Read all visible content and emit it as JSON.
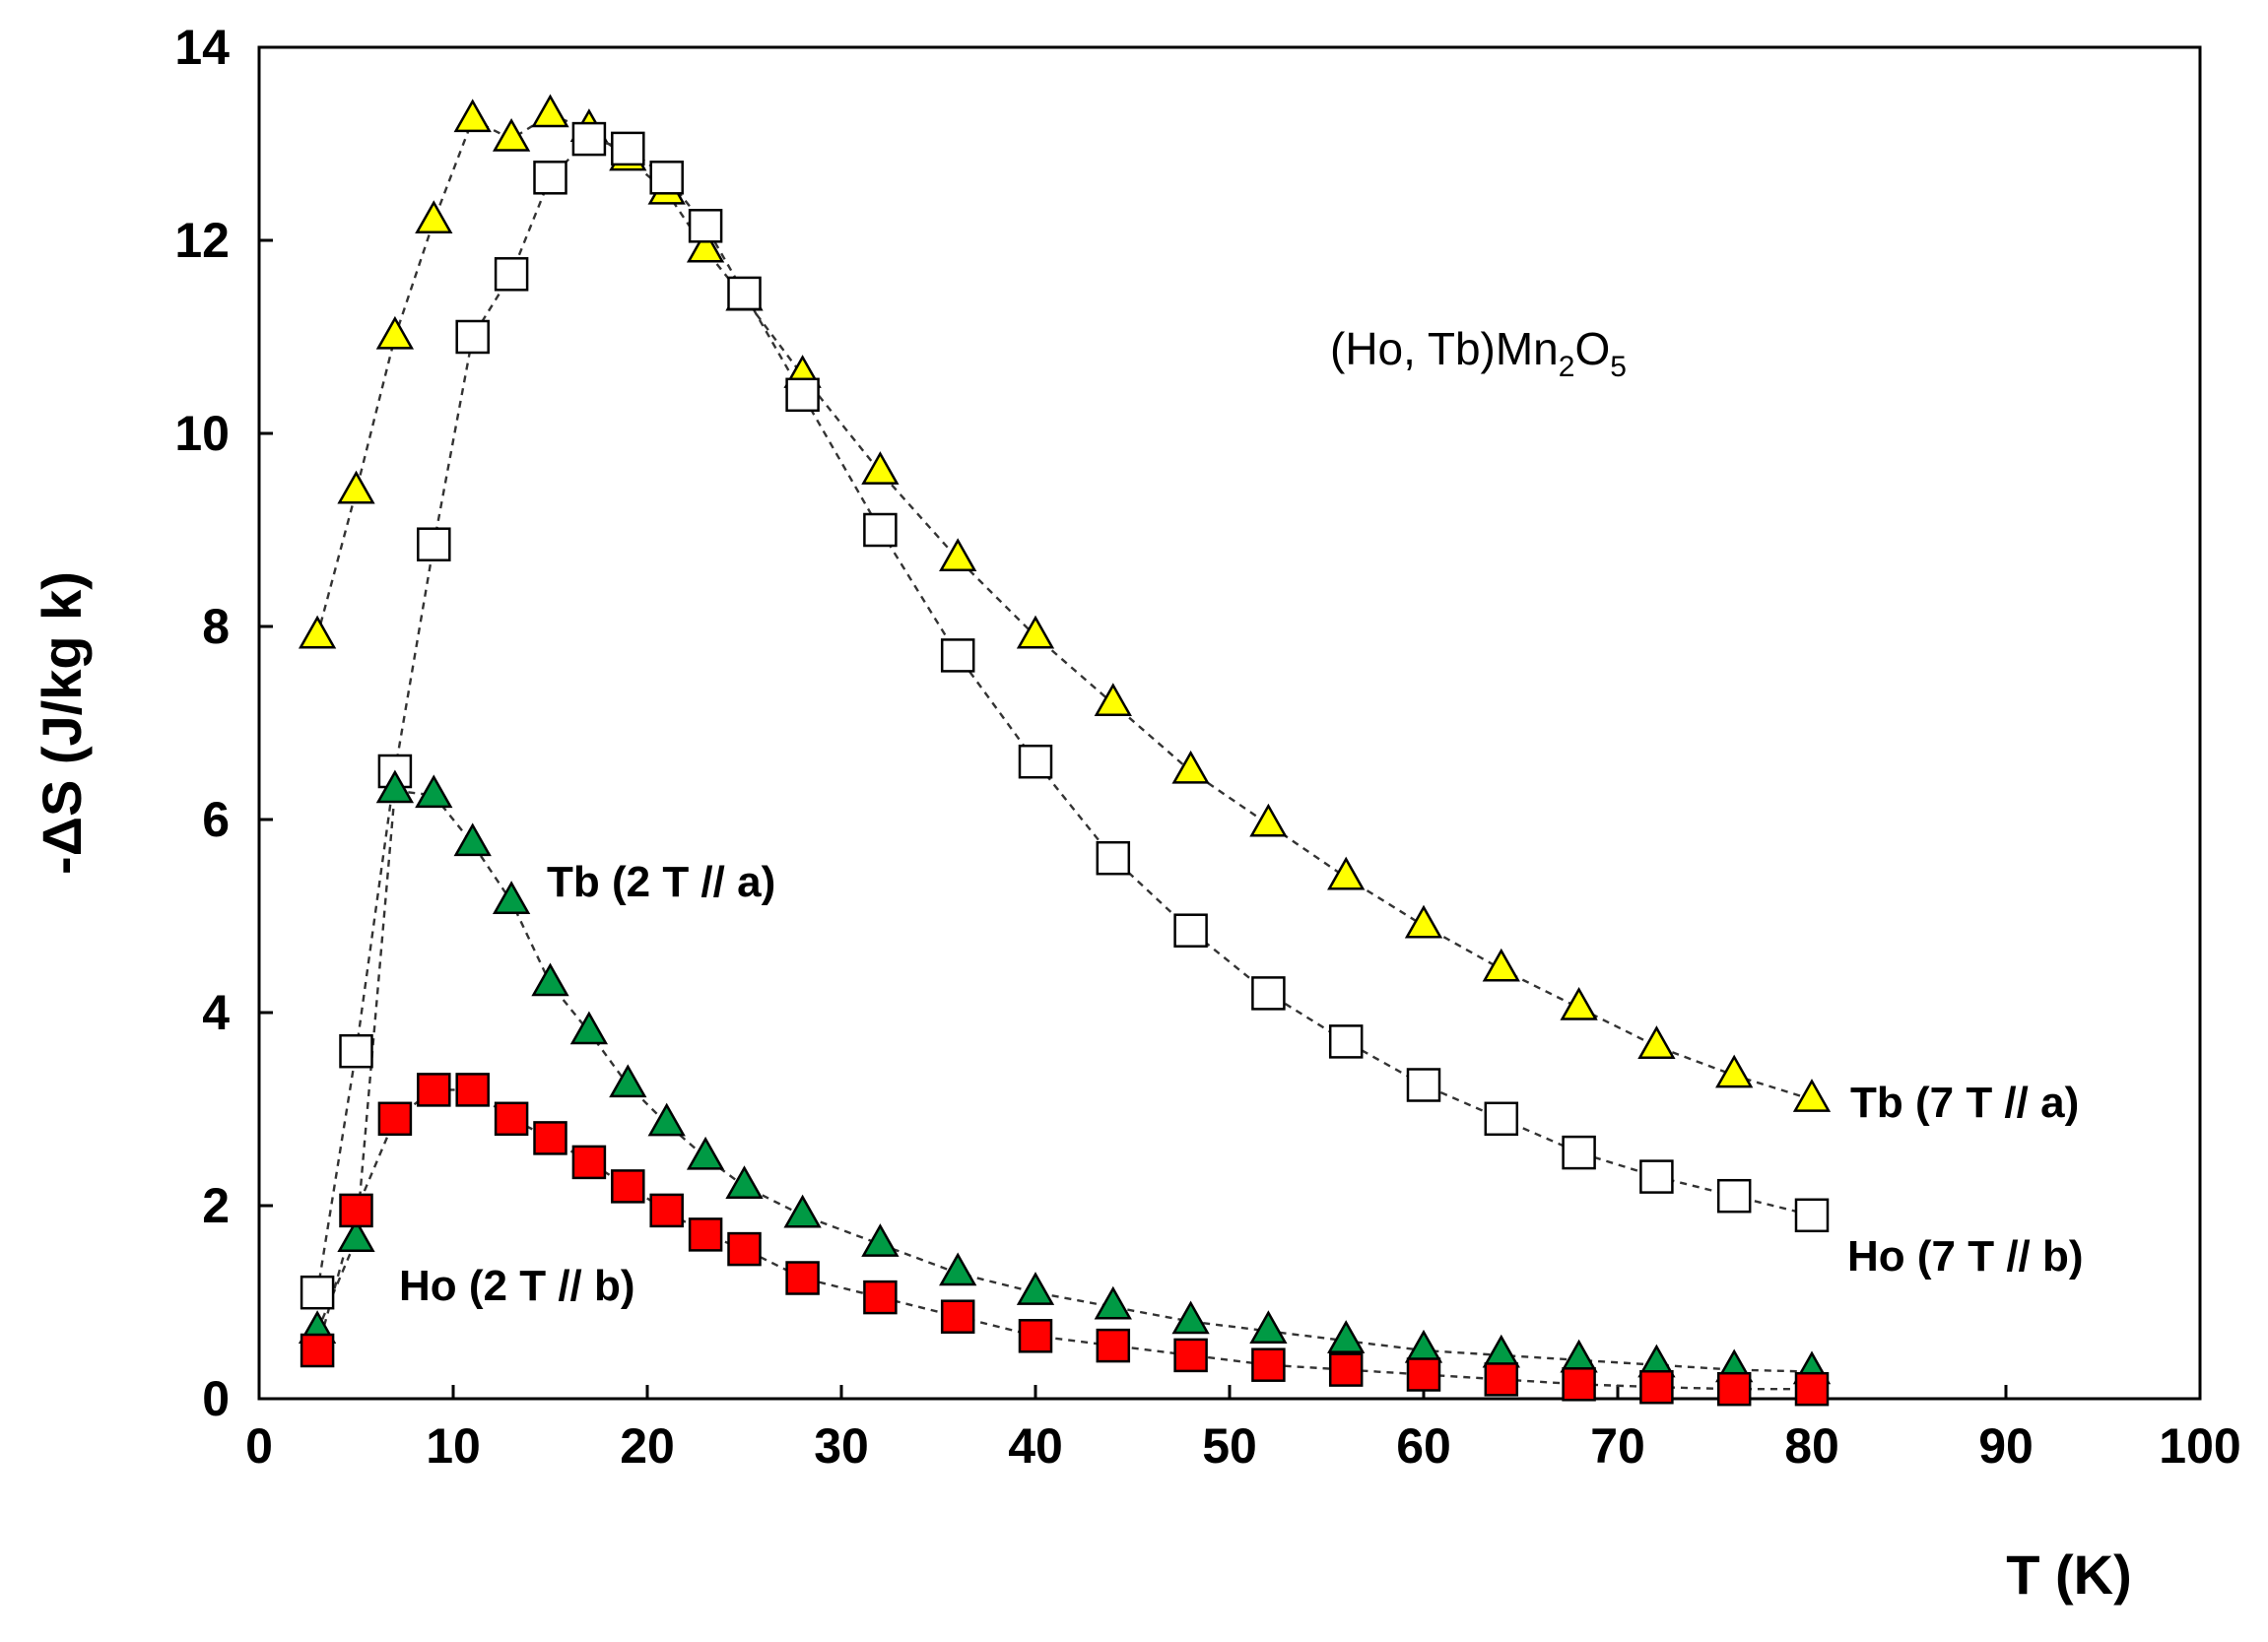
{
  "chart_data": {
    "type": "scatter",
    "title": "",
    "annotation": {
      "prefix": "(Ho, Tb)Mn",
      "sub1": "2",
      "mid": "O",
      "sub2": "5"
    },
    "xlabel": "T (K)",
    "ylabel": "-ΔS (J/kg k)",
    "xlim": [
      0,
      100
    ],
    "ylim": [
      0,
      14
    ],
    "xticks": [
      "0",
      "10",
      "20",
      "30",
      "40",
      "50",
      "60",
      "70",
      "80",
      "90",
      "100"
    ],
    "yticks": [
      "0",
      "2",
      "4",
      "6",
      "8",
      "10",
      "12",
      "14"
    ],
    "grid": false,
    "series": [
      {
        "name": "Tb (7 T // a)",
        "marker": "triangle",
        "color": "#ffff00",
        "x": [
          3,
          5,
          7,
          9,
          11,
          13,
          15,
          17,
          19,
          21,
          23,
          25,
          28,
          32,
          36,
          40,
          44,
          48,
          52,
          56,
          60,
          64,
          68,
          72,
          76,
          80
        ],
        "y": [
          7.9,
          9.4,
          11.0,
          12.2,
          13.25,
          13.05,
          13.3,
          13.15,
          12.85,
          12.5,
          11.9,
          11.4,
          10.6,
          9.6,
          8.7,
          7.9,
          7.2,
          6.5,
          5.95,
          5.4,
          4.9,
          4.45,
          4.05,
          3.65,
          3.35,
          3.1
        ]
      },
      {
        "name": "Ho (7 T // b)",
        "marker": "square",
        "color": "#ffffff",
        "x": [
          3,
          5,
          7,
          9,
          11,
          13,
          15,
          17,
          19,
          21,
          23,
          25,
          28,
          32,
          36,
          40,
          44,
          48,
          52,
          56,
          60,
          64,
          68,
          72,
          76,
          80
        ],
        "y": [
          1.1,
          3.6,
          6.5,
          8.85,
          11.0,
          11.65,
          12.65,
          13.05,
          12.95,
          12.65,
          12.15,
          11.45,
          10.4,
          9.0,
          7.7,
          6.6,
          5.6,
          4.85,
          4.2,
          3.7,
          3.25,
          2.9,
          2.55,
          2.3,
          2.1,
          1.9
        ]
      },
      {
        "name": "Tb (2 T // a)",
        "marker": "triangle",
        "color": "#009a44",
        "x": [
          3,
          5,
          7,
          9,
          11,
          13,
          15,
          17,
          19,
          21,
          23,
          25,
          28,
          32,
          36,
          40,
          44,
          48,
          52,
          56,
          60,
          64,
          68,
          72,
          76,
          80
        ],
        "y": [
          0.7,
          1.65,
          6.3,
          6.25,
          5.75,
          5.15,
          4.3,
          3.8,
          3.25,
          2.85,
          2.5,
          2.2,
          1.9,
          1.6,
          1.3,
          1.1,
          0.95,
          0.8,
          0.7,
          0.6,
          0.5,
          0.45,
          0.4,
          0.35,
          0.3,
          0.28
        ]
      },
      {
        "name": "Ho (2 T // b)",
        "marker": "square",
        "color": "#ff0000",
        "x": [
          3,
          5,
          7,
          9,
          11,
          13,
          15,
          17,
          19,
          21,
          23,
          25,
          28,
          32,
          36,
          40,
          44,
          48,
          52,
          56,
          60,
          64,
          68,
          72,
          76,
          80
        ],
        "y": [
          0.5,
          1.95,
          2.9,
          3.2,
          3.2,
          2.9,
          2.7,
          2.45,
          2.2,
          1.95,
          1.7,
          1.55,
          1.25,
          1.05,
          0.85,
          0.65,
          0.55,
          0.45,
          0.35,
          0.3,
          0.25,
          0.2,
          0.15,
          0.12,
          0.1,
          0.1
        ]
      }
    ]
  }
}
